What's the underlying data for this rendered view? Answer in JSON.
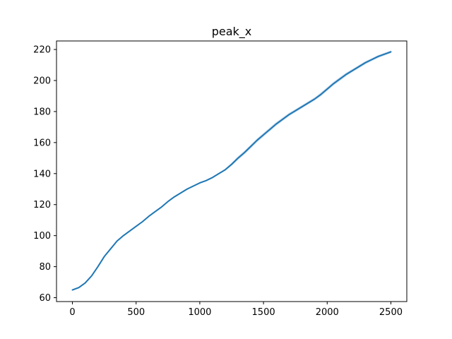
{
  "chart_data": {
    "type": "line",
    "title": "peak_x",
    "xlabel": "",
    "ylabel": "",
    "xlim": [
      -125,
      2625
    ],
    "ylim": [
      57.5,
      225.5
    ],
    "x_ticks": [
      0,
      500,
      1000,
      1500,
      2000,
      2500
    ],
    "y_ticks": [
      60,
      80,
      100,
      120,
      140,
      160,
      180,
      200,
      220
    ],
    "grid": false,
    "legend": "none",
    "colors": {
      "line": "#1f77b4",
      "band": "#a6c8e3"
    },
    "series": [
      {
        "x": [
          0,
          50,
          100,
          150,
          200,
          250,
          300,
          350,
          400,
          450,
          500,
          550,
          600,
          650,
          700,
          750,
          800,
          850,
          900,
          950,
          1000,
          1050,
          1100,
          1150,
          1200,
          1250,
          1300,
          1350,
          1400,
          1450,
          1500,
          1550,
          1600,
          1650,
          1700,
          1750,
          1800,
          1850,
          1900,
          1950,
          2000,
          2050,
          2100,
          2150,
          2200,
          2250,
          2300,
          2350,
          2400,
          2450,
          2500
        ],
        "values": [
          65,
          66.5,
          69.5,
          74,
          80,
          86.5,
          91.5,
          96.5,
          100,
          103,
          106,
          109,
          112.5,
          115.5,
          118.5,
          122,
          125,
          127.5,
          130,
          132,
          134,
          135.5,
          137.5,
          140,
          142.5,
          146,
          150,
          153.5,
          157.5,
          161.5,
          165,
          168.5,
          172,
          175,
          178,
          180.5,
          183,
          185.5,
          188,
          191,
          194.5,
          198,
          201,
          204,
          206.5,
          209,
          211.5,
          213.5,
          215.5,
          217,
          218.5
        ],
        "lower": [
          64.5,
          66,
          69,
          73.5,
          79.5,
          86,
          91,
          96,
          99.5,
          102.5,
          105.5,
          108.5,
          112,
          115,
          118,
          121.5,
          124.5,
          127,
          129.5,
          131.5,
          133.5,
          135,
          137,
          139.5,
          141.8,
          145,
          148.8,
          152.3,
          156.3,
          160.3,
          163.8,
          167.3,
          170.8,
          173.9,
          176.9,
          179.5,
          182,
          184.5,
          187,
          189.8,
          193.3,
          196.8,
          199.8,
          202.9,
          205.5,
          208,
          210.5,
          212.6,
          214.6,
          216.1,
          217.6
        ],
        "upper": [
          65.5,
          67,
          70,
          74.5,
          80.5,
          87,
          92,
          97,
          100.5,
          103.5,
          106.5,
          109.5,
          113,
          116,
          119,
          122.5,
          125.5,
          128,
          130.5,
          132.5,
          134.5,
          136,
          138,
          140.5,
          143.2,
          147,
          151.2,
          154.7,
          158.7,
          162.7,
          166.2,
          169.7,
          173.2,
          176.1,
          179.1,
          181.5,
          184,
          186.5,
          189,
          192.2,
          195.7,
          199.2,
          202.2,
          205.1,
          207.5,
          210,
          212.5,
          214.4,
          216.4,
          217.9,
          219.4
        ]
      }
    ]
  }
}
